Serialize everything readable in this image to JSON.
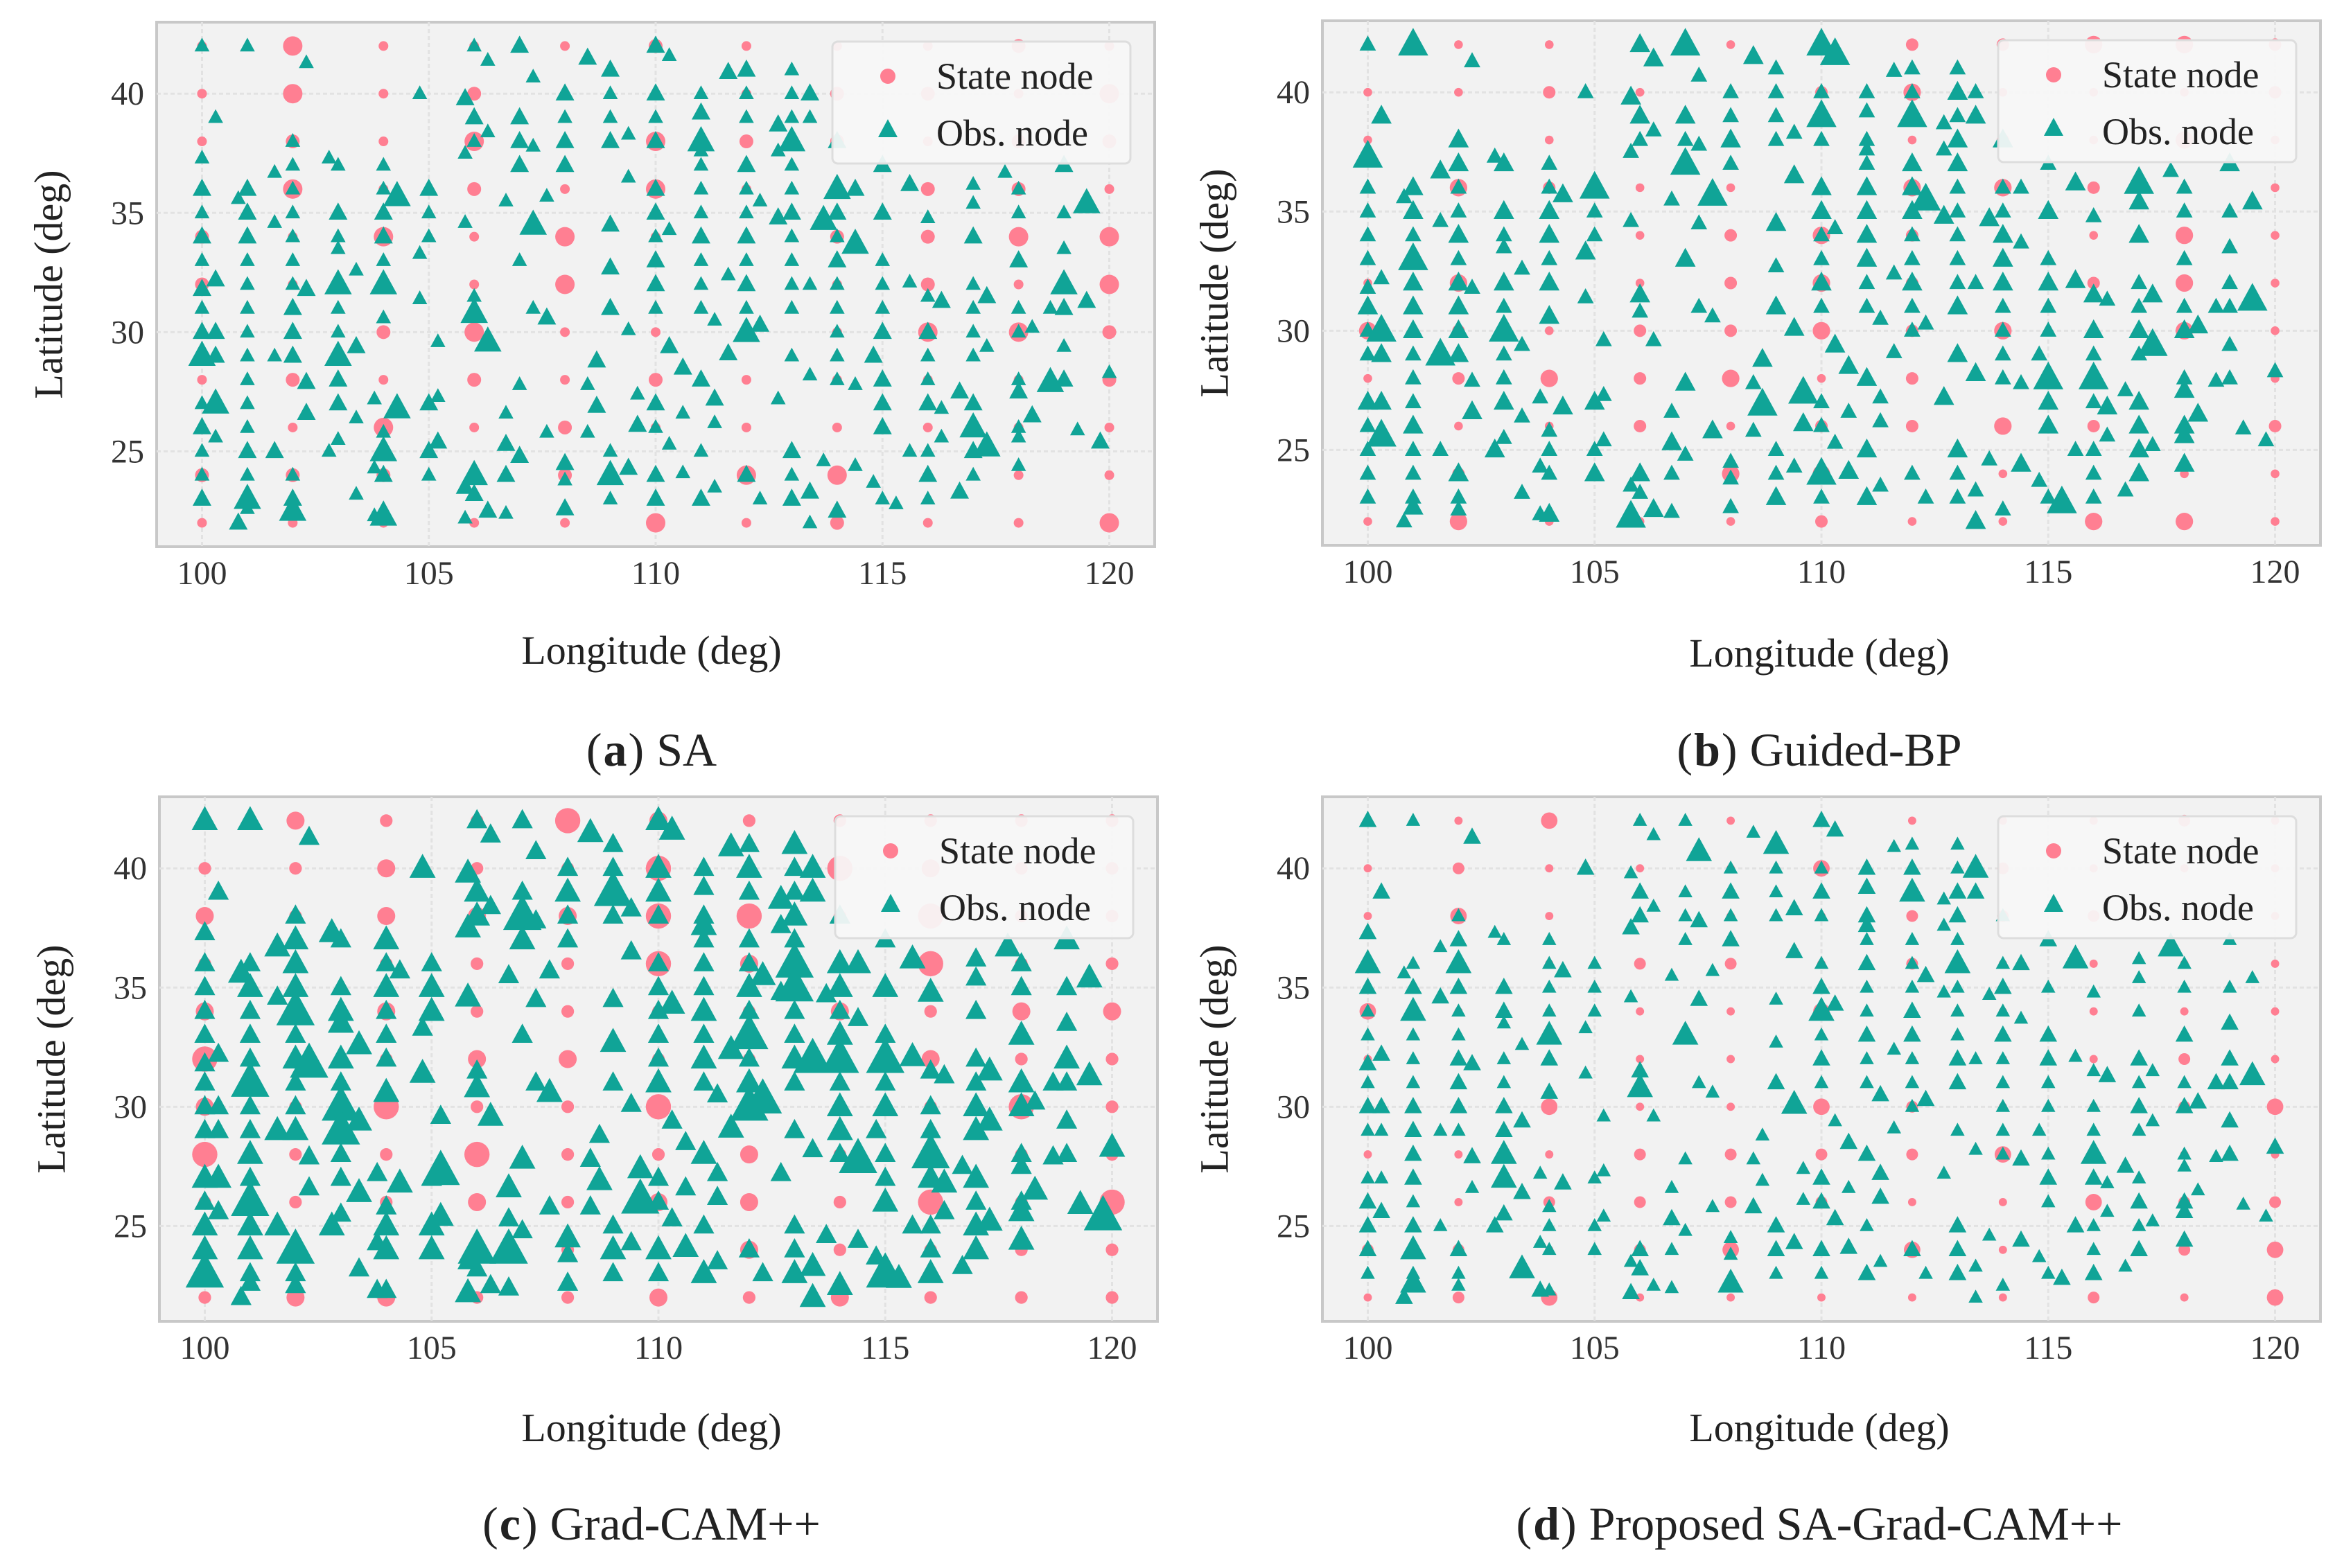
{
  "chart_data": {
    "type": "scatter",
    "shared": {
      "xlabel": "Longitude (deg)",
      "ylabel": "Latitude (deg)",
      "xlim": [
        99,
        121
      ],
      "ylim": [
        21,
        43
      ],
      "xticks": [
        100,
        105,
        110,
        115,
        120
      ],
      "yticks": [
        25,
        30,
        35,
        40
      ],
      "grid": true,
      "legend_position": "top-right",
      "legend": [
        {
          "label": "State node",
          "marker": "circle"
        },
        {
          "label": "Obs. node",
          "marker": "triangle"
        }
      ],
      "colors": {
        "state": "#ff7f92",
        "obs": "#10a497",
        "plot_bg": "#f2f2f2",
        "grid": "#ffffff"
      },
      "state_nodes": {
        "lon": [
          100,
          102,
          104,
          106,
          108,
          110,
          112,
          114,
          116,
          118,
          120
        ],
        "lat": [
          22,
          24,
          26,
          28,
          30,
          32,
          34,
          36,
          38,
          40,
          42
        ]
      },
      "obs_nodes": [
        {
          "lon": 100,
          "lats": [
            42,
            37.3,
            36,
            35,
            34,
            33,
            31.8,
            31,
            30,
            29,
            27,
            26,
            25,
            24,
            23
          ]
        },
        {
          "lon": 100.3,
          "lats": [
            39,
            32.2,
            30,
            29,
            27,
            25.6
          ]
        },
        {
          "lon": 100.8,
          "lats": [
            22,
            35.6
          ]
        },
        {
          "lon": 101,
          "lats": [
            42,
            36,
            35,
            34,
            33,
            32,
            31,
            30,
            29,
            28,
            27,
            26,
            25,
            24,
            23,
            22.6
          ]
        },
        {
          "lon": 101.6,
          "lats": [
            36.7,
            34.6,
            29,
            25
          ]
        },
        {
          "lon": 102,
          "lats": [
            38,
            37,
            36,
            35,
            34,
            33,
            32,
            31,
            30,
            29,
            24,
            23,
            22.5
          ]
        },
        {
          "lon": 102.3,
          "lats": [
            41.3,
            31.8,
            27.9,
            26.6
          ]
        },
        {
          "lon": 102.8,
          "lats": [
            37.3,
            25
          ]
        },
        {
          "lon": 103,
          "lats": [
            37,
            35,
            34,
            33.5,
            32,
            31,
            30,
            29,
            28,
            27,
            25.5
          ]
        },
        {
          "lon": 103.4,
          "lats": [
            32.6,
            29.4,
            26.4,
            23.2
          ]
        },
        {
          "lon": 103.8,
          "lats": [
            27.2,
            24.3,
            22.3
          ]
        },
        {
          "lon": 104,
          "lats": [
            37,
            36,
            35,
            34,
            33,
            32,
            30.6,
            25.8,
            25,
            24,
            22.3
          ]
        },
        {
          "lon": 104.3,
          "lats": [
            35.7,
            26.8
          ]
        },
        {
          "lon": 104.8,
          "lats": [
            40,
            33.3,
            31.4
          ]
        },
        {
          "lon": 105,
          "lats": [
            36,
            35,
            34,
            27,
            25,
            24
          ]
        },
        {
          "lon": 105.2,
          "lats": [
            29.6,
            27.3,
            25.4
          ]
        },
        {
          "lon": 105.8,
          "lats": [
            39.8,
            37.5,
            34.6,
            23.5,
            22.2
          ]
        },
        {
          "lon": 106,
          "lats": [
            42,
            39,
            38,
            31.5,
            30.8,
            24,
            23.2
          ]
        },
        {
          "lon": 106.3,
          "lats": [
            41.4,
            38.4,
            29.6,
            22.5
          ]
        },
        {
          "lon": 106.7,
          "lats": [
            35.5,
            26.6,
            25.3,
            24,
            22.4
          ]
        },
        {
          "lon": 107,
          "lats": [
            42,
            39,
            38,
            37,
            33,
            27.8,
            24.8
          ]
        },
        {
          "lon": 107.3,
          "lats": [
            40.7,
            37.8,
            34.5,
            31
          ]
        },
        {
          "lon": 107.6,
          "lats": [
            35.7,
            30.6,
            25.8
          ]
        },
        {
          "lon": 108,
          "lats": [
            40,
            39,
            38,
            37,
            24.5,
            23.8,
            22.6
          ]
        },
        {
          "lon": 108.5,
          "lats": [
            41.5,
            27.8,
            25.8
          ]
        },
        {
          "lon": 108.7,
          "lats": [
            26.9,
            28.8
          ]
        },
        {
          "lon": 109,
          "lats": [
            41,
            40,
            39,
            38,
            34.5,
            32.7,
            31,
            25,
            24,
            23
          ]
        },
        {
          "lon": 109.4,
          "lats": [
            38.3,
            36.5,
            30.1,
            24.3
          ]
        },
        {
          "lon": 109.6,
          "lats": [
            27.4,
            26.1
          ]
        },
        {
          "lon": 110,
          "lats": [
            42,
            40,
            39,
            38,
            36,
            35,
            34,
            33,
            32,
            31,
            27,
            26,
            24,
            23
          ]
        },
        {
          "lon": 110.3,
          "lats": [
            41.6,
            34.3,
            29.4,
            25.3
          ]
        },
        {
          "lon": 110.6,
          "lats": [
            24.1,
            28.5,
            26.6
          ]
        },
        {
          "lon": 111,
          "lats": [
            40,
            39.2,
            38,
            37.6,
            37,
            36,
            35,
            34,
            33,
            32,
            31,
            28,
            25,
            23
          ]
        },
        {
          "lon": 111.3,
          "lats": [
            23.5,
            27.2,
            30.5,
            26.2
          ]
        },
        {
          "lon": 111.6,
          "lats": [
            40.9,
            32.4,
            29.1
          ]
        },
        {
          "lon": 112,
          "lats": [
            41,
            40,
            39,
            37,
            36,
            35,
            34,
            33,
            32,
            31,
            30,
            24
          ]
        },
        {
          "lon": 112.3,
          "lats": [
            30.3,
            35.5,
            23
          ]
        },
        {
          "lon": 112.7,
          "lats": [
            38.7,
            37.6,
            34.8,
            27.2
          ]
        },
        {
          "lon": 113,
          "lats": [
            41,
            40,
            39,
            38,
            37,
            36,
            35,
            34,
            33,
            32,
            31,
            29,
            25,
            24,
            23
          ]
        },
        {
          "lon": 113.4,
          "lats": [
            40,
            39,
            32,
            28.2,
            23.3,
            22
          ]
        },
        {
          "lon": 113.7,
          "lats": [
            34.7,
            24.6
          ]
        },
        {
          "lon": 114,
          "lats": [
            38,
            36,
            35,
            34,
            33,
            32,
            31,
            30,
            29,
            28,
            22.5
          ]
        },
        {
          "lon": 114.4,
          "lats": [
            36,
            33.7,
            27.8,
            24.4
          ]
        },
        {
          "lon": 114.8,
          "lats": [
            23.7,
            29
          ]
        },
        {
          "lon": 115,
          "lats": [
            37,
            35,
            33,
            32,
            31,
            30,
            28,
            27,
            26,
            23
          ]
        },
        {
          "lon": 115.3,
          "lats": [
            22.8
          ]
        },
        {
          "lon": 115.6,
          "lats": [
            36.2,
            32.1,
            25
          ]
        },
        {
          "lon": 116,
          "lats": [
            34.8,
            31.5,
            30,
            29,
            28,
            27,
            25,
            24,
            23
          ]
        },
        {
          "lon": 116.3,
          "lats": [
            31.3,
            26.8,
            25.6
          ]
        },
        {
          "lon": 116.7,
          "lats": [
            27.5,
            23.3
          ]
        },
        {
          "lon": 117,
          "lats": [
            36.2,
            35.4,
            34,
            32,
            31,
            30,
            29,
            27,
            26,
            25,
            24
          ]
        },
        {
          "lon": 117.3,
          "lats": [
            31.5,
            29.4,
            25.2
          ]
        },
        {
          "lon": 117.7,
          "lats": [
            36.7
          ]
        },
        {
          "lon": 118,
          "lats": [
            36,
            35,
            33,
            31,
            30,
            28,
            27.5,
            26,
            25.6,
            24.4
          ]
        },
        {
          "lon": 118.3,
          "lats": [
            30.2,
            26.5
          ]
        },
        {
          "lon": 118.7,
          "lats": [
            31,
            27.9
          ]
        },
        {
          "lon": 119,
          "lats": [
            37,
            35,
            33.5,
            32,
            31,
            29.4,
            28
          ]
        },
        {
          "lon": 119.3,
          "lats": [
            25.9
          ]
        },
        {
          "lon": 119.5,
          "lats": [
            31.3,
            35.4
          ]
        },
        {
          "lon": 119.8,
          "lats": [
            25.4
          ]
        },
        {
          "lon": 120,
          "lats": [
            28.3
          ]
        }
      ]
    },
    "panels": [
      {
        "id": "a",
        "caption_letter": "a",
        "caption_text": "SA",
        "obs_size_scale": 1.0,
        "state_size_scale": 1.0
      },
      {
        "id": "b",
        "caption_letter": "b",
        "caption_text": "Guided-BP",
        "obs_size_scale": 1.1,
        "state_size_scale": 0.9
      },
      {
        "id": "c",
        "caption_letter": "c",
        "caption_text": "Grad-CAM++",
        "obs_size_scale": 1.4,
        "state_size_scale": 1.3
      },
      {
        "id": "d",
        "caption_letter": "d",
        "caption_text": "Proposed SA-Grad-CAM++",
        "obs_size_scale": 0.95,
        "state_size_scale": 0.85
      }
    ]
  }
}
